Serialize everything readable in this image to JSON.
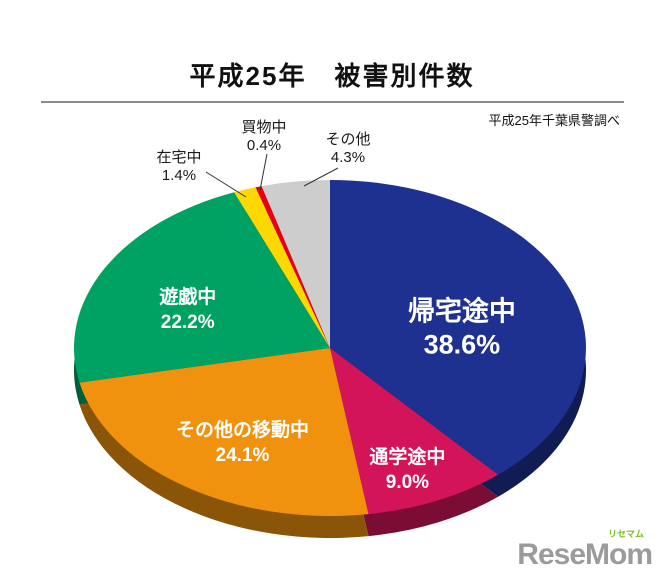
{
  "chart_data": {
    "type": "pie",
    "style": "3d-ellipse",
    "title": "平成25年　被害別件数",
    "source": "平成25年千葉県警調べ",
    "unit": "%",
    "direction": "clockwise",
    "start_angle_deg": 0,
    "slices": [
      {
        "label": "帰宅途中",
        "value": 38.6,
        "color": "#1e3190",
        "label_position": "inside"
      },
      {
        "label": "通学途中",
        "value": 9.0,
        "color": "#d41459",
        "label_position": "inside"
      },
      {
        "label": "その他の移動中",
        "value": 24.1,
        "color": "#f0920e",
        "label_position": "inside"
      },
      {
        "label": "遊戯中",
        "value": 22.2,
        "color": "#00a263",
        "label_position": "inside"
      },
      {
        "label": "在宅中",
        "value": 1.4,
        "color": "#ffd800",
        "label_position": "outside"
      },
      {
        "label": "買物中",
        "value": 0.4,
        "color": "#e60012",
        "label_position": "outside"
      },
      {
        "label": "その他",
        "value": 4.3,
        "color": "#cdcdcd",
        "label_position": "outside"
      }
    ]
  },
  "logo": {
    "wordmark": "ReseMom",
    "katakana": "リセマム",
    "color_gray": "#9b9b9c",
    "color_green": "#7ebd2a"
  }
}
